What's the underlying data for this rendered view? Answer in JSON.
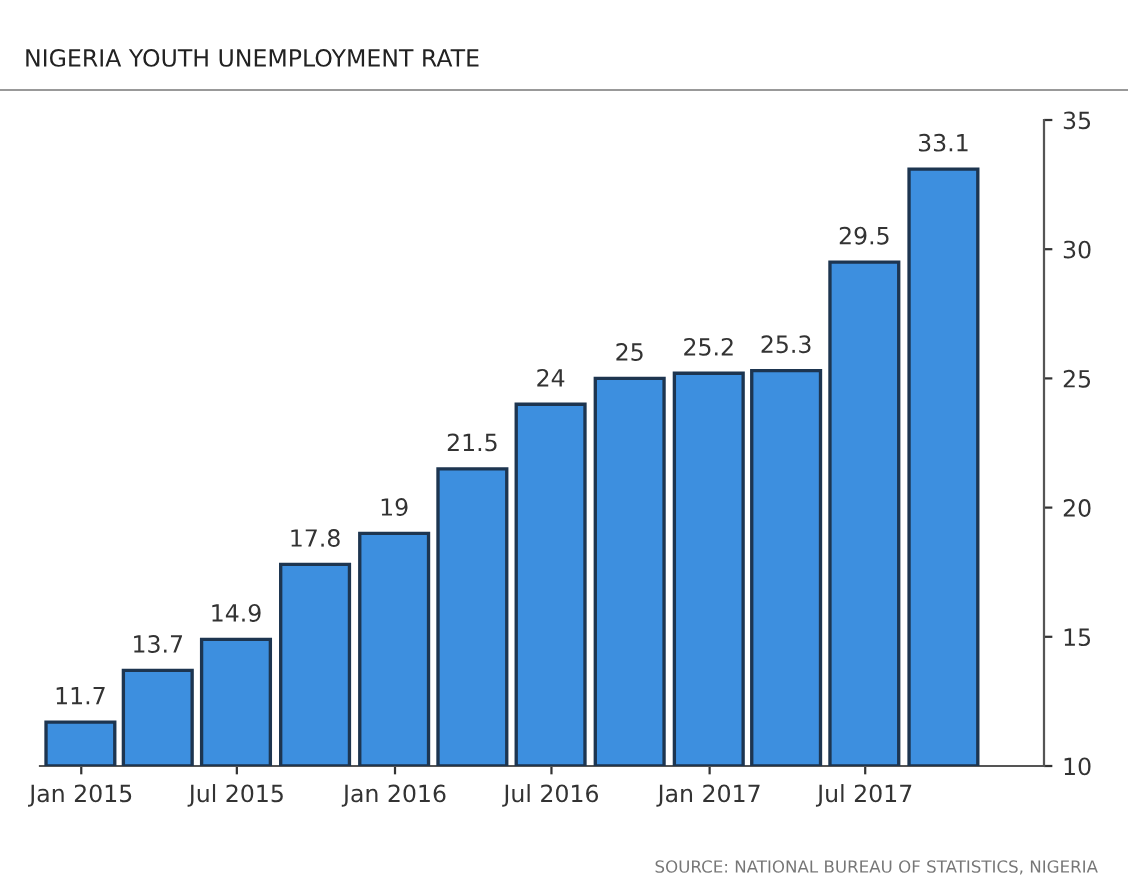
{
  "chart_data": {
    "type": "bar",
    "title": "NIGERIA YOUTH UNEMPLOYMENT RATE",
    "x": [
      "2014-12-31",
      "2015-03-31",
      "2015-06-30",
      "2015-09-30",
      "2015-12-31",
      "2016-03-31",
      "2016-06-30",
      "2016-09-30",
      "2016-12-31",
      "2017-03-31",
      "2017-06-30",
      "2017-09-30"
    ],
    "values": [
      11.7,
      13.7,
      14.9,
      17.8,
      19,
      21.5,
      24,
      25,
      25.2,
      25.3,
      29.5,
      33.1
    ],
    "color": "#3d8fdf",
    "data_labels": true,
    "xlim": [
      "2014-11-14",
      "2018-01-25"
    ],
    "xticks": [
      {
        "value": "2015-01-01",
        "label": "Jan 2015"
      },
      {
        "value": "2015-07-01",
        "label": "Jul 2015"
      },
      {
        "value": "2016-01-01",
        "label": "Jan 2016"
      },
      {
        "value": "2016-07-01",
        "label": "Jul 2016"
      },
      {
        "value": "2017-01-01",
        "label": "Jan 2017"
      },
      {
        "value": "2017-07-01",
        "label": "Jul 2017"
      }
    ],
    "ylim": [
      10,
      35
    ],
    "yticks": [
      10,
      15,
      20,
      25,
      30,
      35
    ],
    "grid": false,
    "annotations": [
      "SOURCE: NATIONAL BUREAU OF STATISTICS, NIGERIA"
    ]
  }
}
